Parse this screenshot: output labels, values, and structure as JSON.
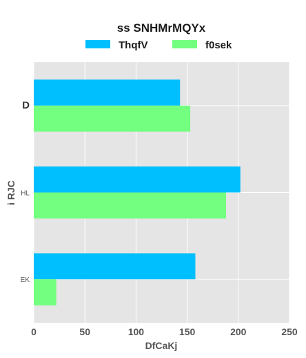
{
  "chart_data": {
    "type": "bar",
    "orientation": "horizontal",
    "title": "ss SNHMrMQYx",
    "xlabel": "DfCaKj",
    "ylabel": "i RJC",
    "categories": [
      "D",
      "HL",
      "EK"
    ],
    "series": [
      {
        "name": "ThqfV",
        "color": "#00bfff",
        "values": [
          143,
          202,
          158
        ]
      },
      {
        "name": "f0sek",
        "color": "#73ff80",
        "values": [
          153,
          188,
          22
        ]
      }
    ],
    "xlim": [
      0,
      250
    ],
    "xticks": [
      0,
      50,
      100,
      150,
      200,
      250
    ],
    "grid": true,
    "legend_position": "top-center",
    "plot_background": "#e5e5e5",
    "grid_color": "#ffffff"
  }
}
